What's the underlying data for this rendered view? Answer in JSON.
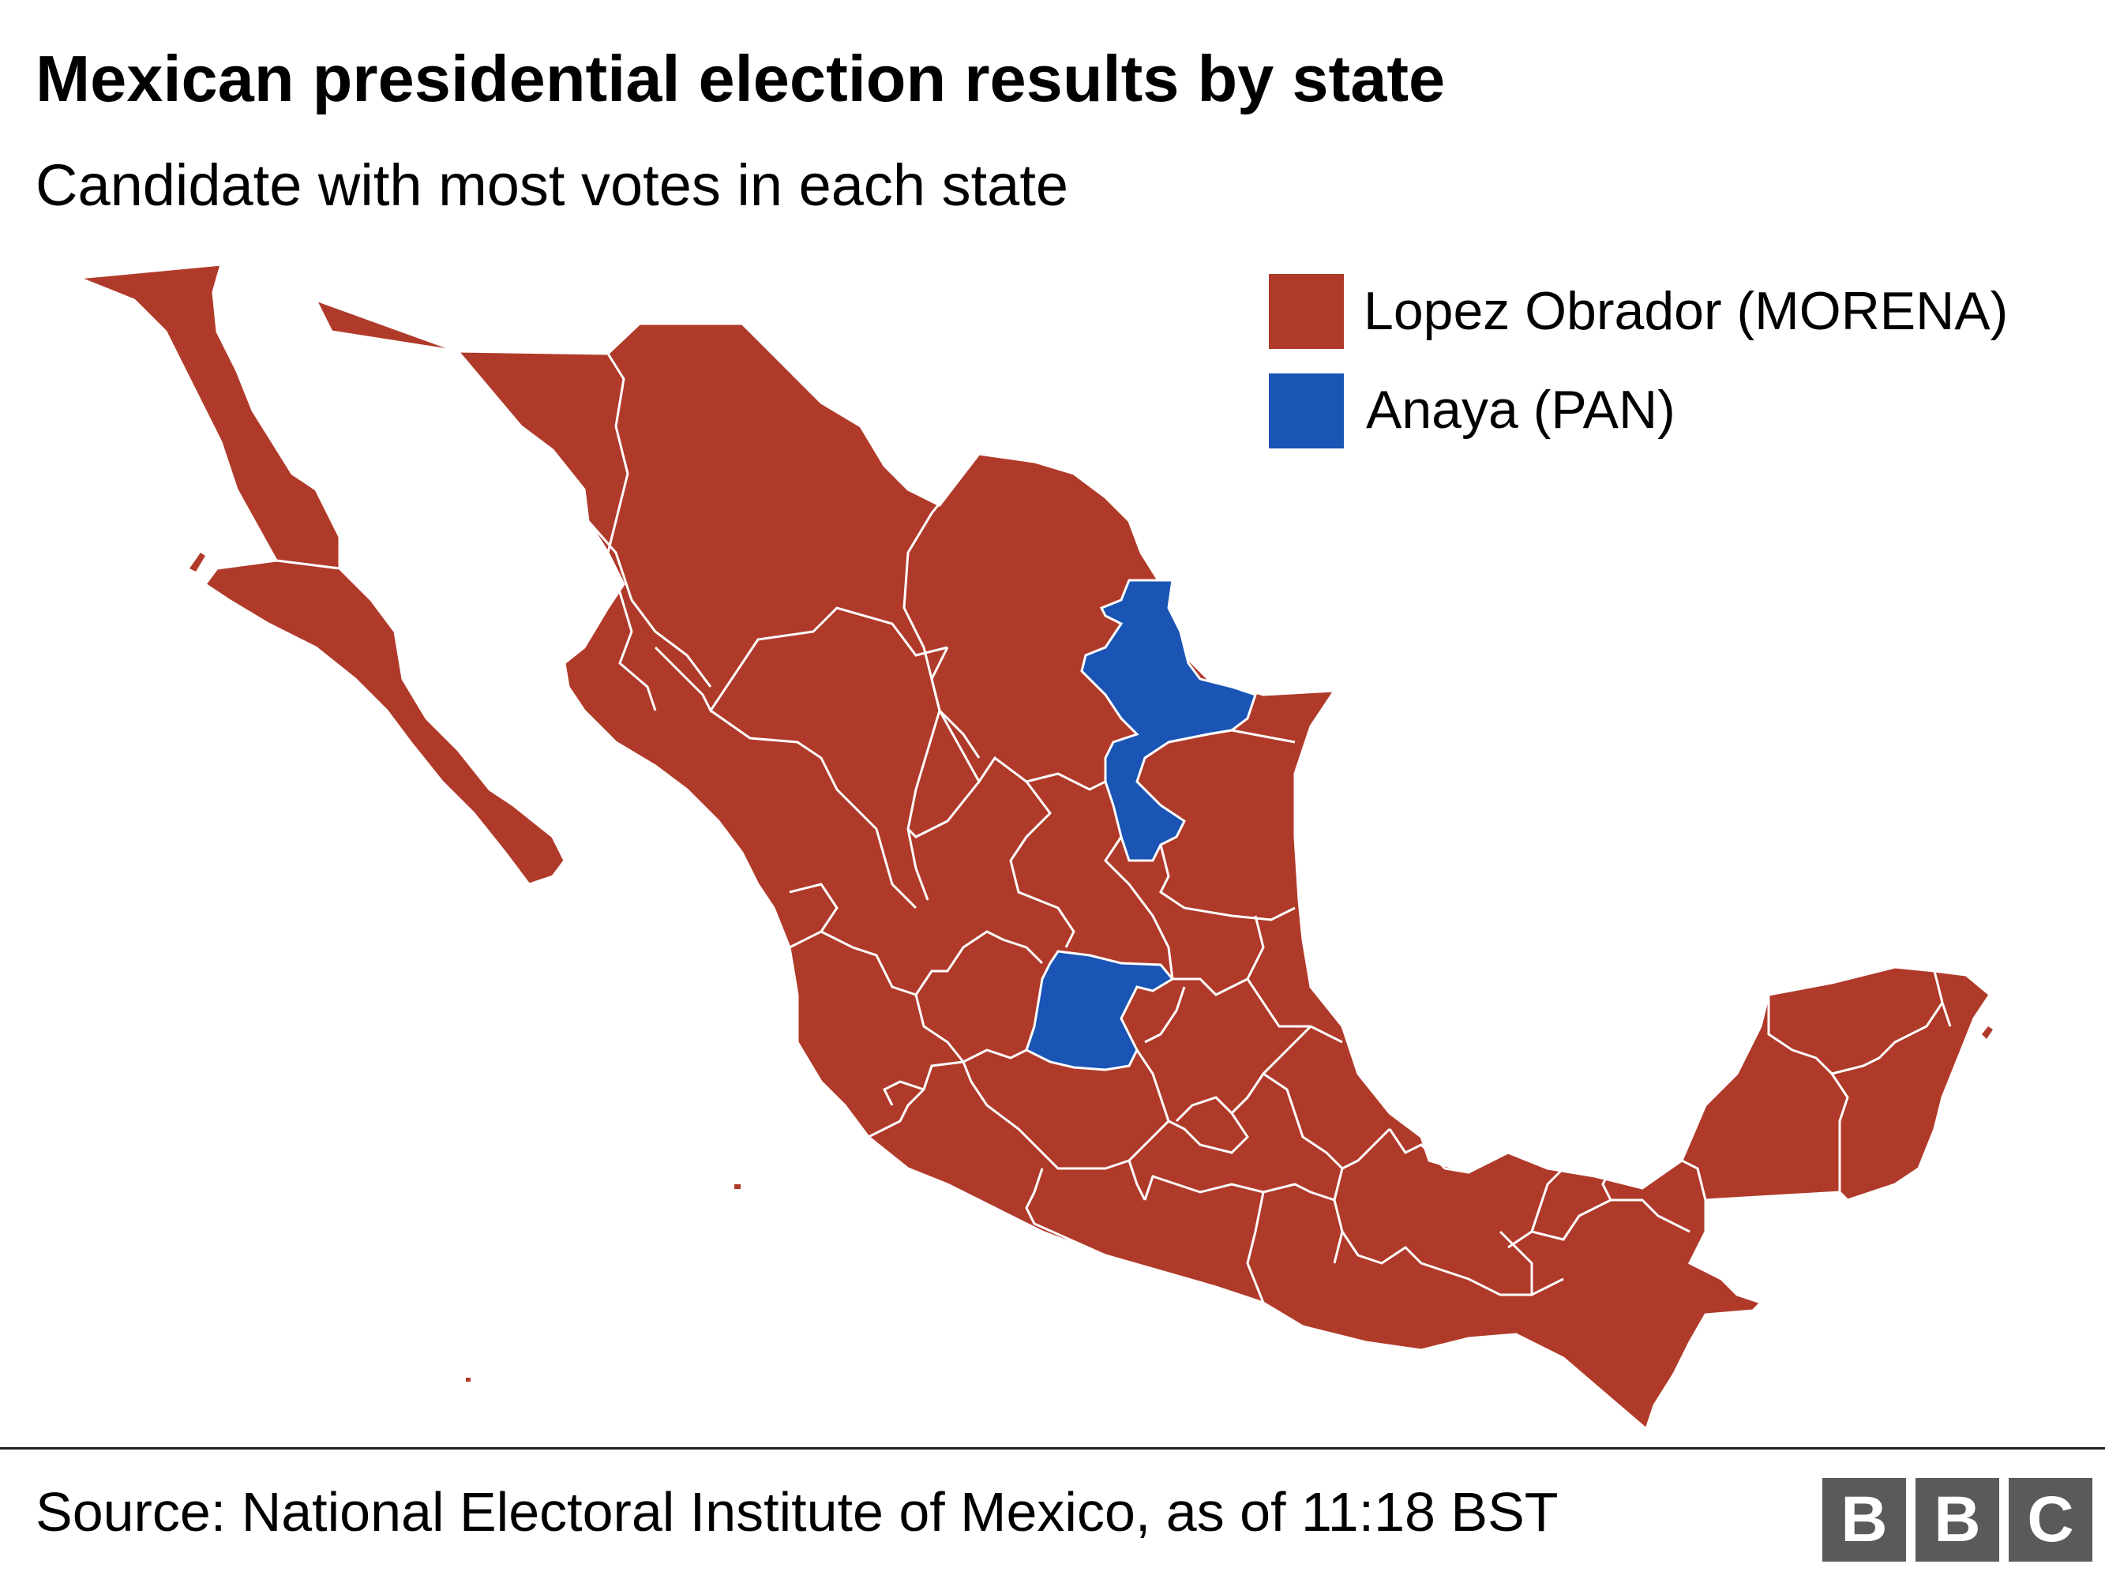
{
  "title": "Mexican presidential election results by state",
  "subtitle": "Candidate with most votes in each state",
  "legend": [
    {
      "label": "Lopez Obrador (MORENA)",
      "color": "#b03a2a"
    },
    {
      "label": "Anaya (PAN)",
      "color": "#1a54b5"
    }
  ],
  "states": {
    "nuevo_leon": {
      "winner": "Anaya (PAN)"
    },
    "guanajuato": {
      "winner": "Anaya (PAN)"
    },
    "all_other_states": {
      "winner": "Lopez Obrador (MORENA)"
    }
  },
  "source": "Source: National Electoral Institute of Mexico, as of 11:18 BST",
  "logo": {
    "letters": [
      "B",
      "B",
      "C"
    ]
  }
}
